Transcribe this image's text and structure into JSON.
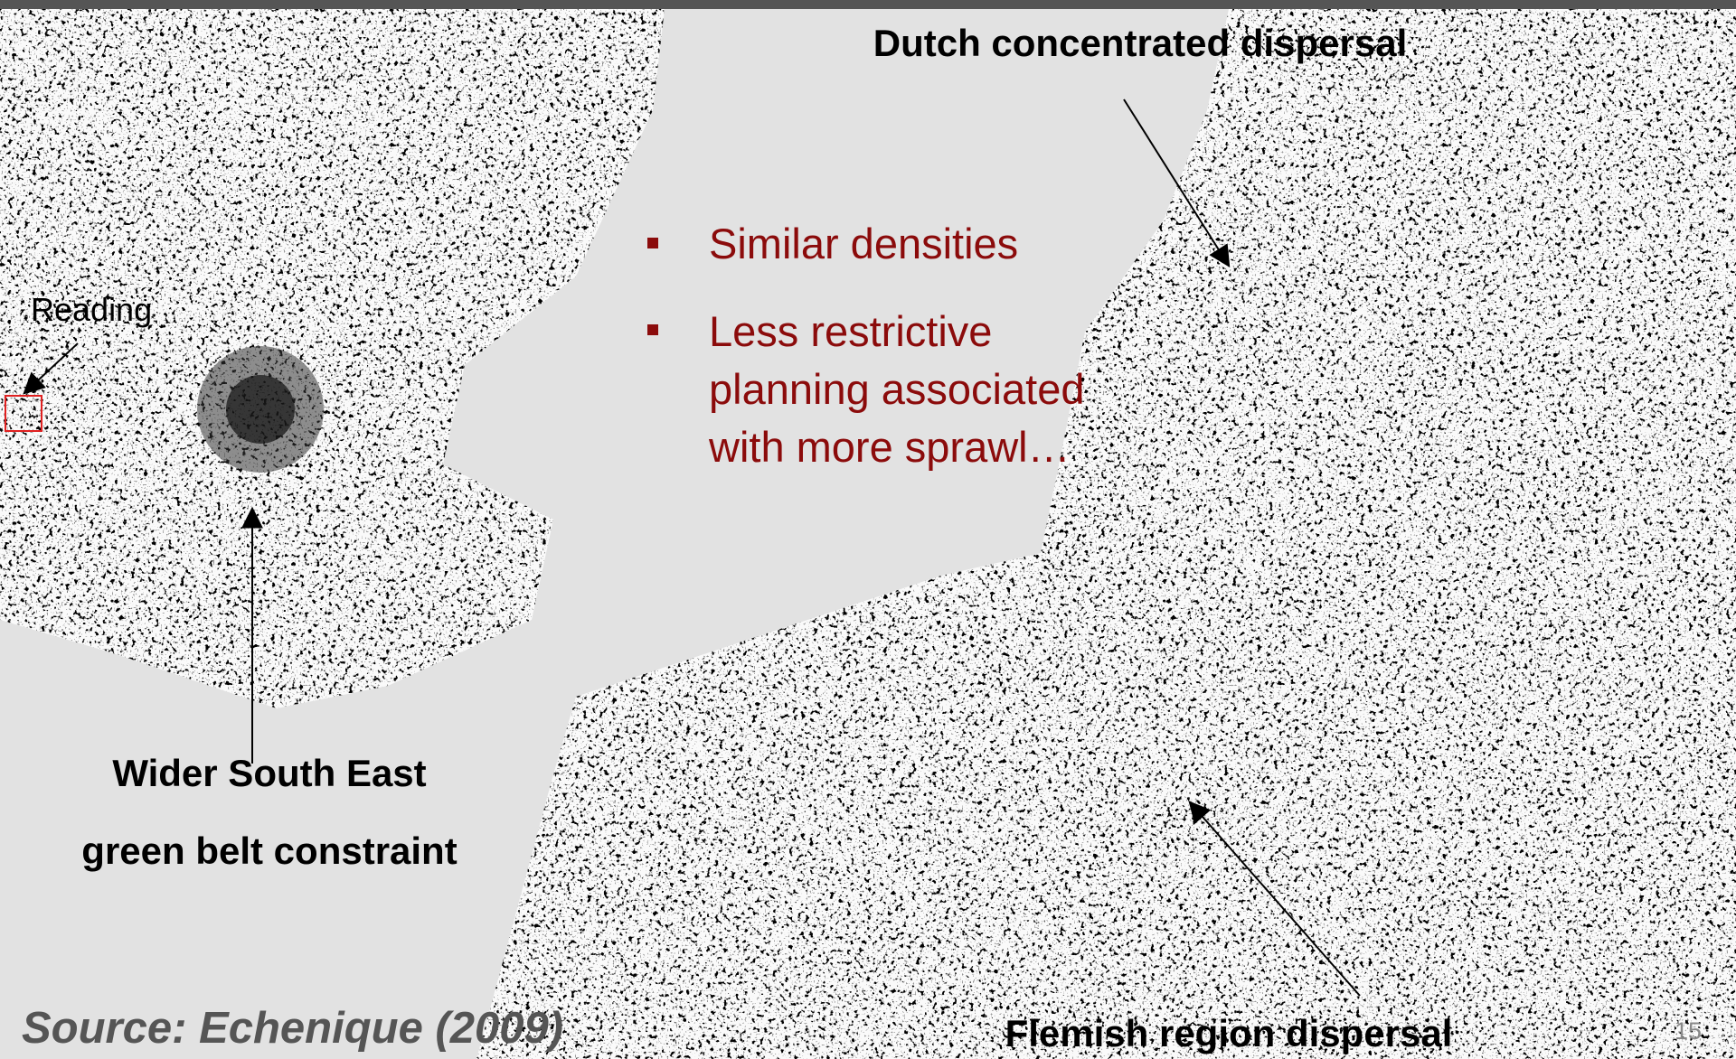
{
  "annotations": {
    "dutch": "Dutch concentrated dispersal",
    "reading": "Reading",
    "wse_line1": "Wider South East",
    "wse_line2": "green belt constraint",
    "flemish": "Flemish region dispersal"
  },
  "bullets": [
    "Similar densities",
    "Less restrictive planning associated with more sprawl…"
  ],
  "source": "Source: Echenique (2009)",
  "page_number": "15"
}
